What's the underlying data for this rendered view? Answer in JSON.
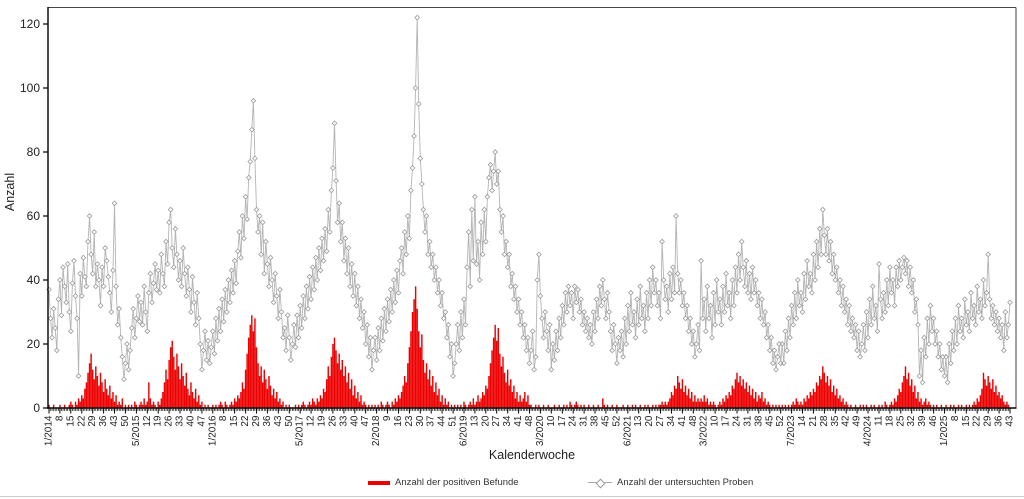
{
  "chart_data": {
    "type": "bar+line",
    "title": "",
    "xlabel": "Kalenderwoche",
    "ylabel": "Anzahl",
    "ylim": [
      0,
      120
    ],
    "yticks": [
      0,
      20,
      40,
      60,
      80,
      100,
      120
    ],
    "x_start": "1/2014",
    "x_end": "43/2025",
    "n_weeks": 617,
    "x_tick_every_weeks": 7,
    "grid": "off",
    "legend_position": "bottom",
    "x_tick_labels": [
      "1/2014",
      "8",
      "15",
      "22",
      "29",
      "36",
      "43",
      "50",
      "5/2015",
      "12",
      "19",
      "26",
      "33",
      "40",
      "47",
      "1/2016",
      "8",
      "15",
      "22",
      "29",
      "36",
      "43",
      "50",
      "5/2017",
      "12",
      "19",
      "26",
      "33",
      "40",
      "47",
      "2/2018",
      "9",
      "16",
      "23",
      "30",
      "37",
      "44",
      "51",
      "6/2019",
      "13",
      "20",
      "27",
      "34",
      "41",
      "48",
      "3/2020",
      "10",
      "17",
      "24",
      "31",
      "38",
      "45",
      "52",
      "6/2021",
      "13",
      "20",
      "27",
      "34",
      "41",
      "48",
      "3/2022",
      "10",
      "17",
      "24",
      "31",
      "38",
      "45",
      "52",
      "7/2023",
      "14",
      "21",
      "28",
      "35",
      "42",
      "49",
      "4/2024",
      "11",
      "18",
      "25",
      "32",
      "39",
      "46",
      "1/2025",
      "8",
      "15",
      "22",
      "29",
      "36",
      "43"
    ],
    "series": [
      {
        "name": "Anzahl der positiven Befunde",
        "type": "bar",
        "color": "#ee0000",
        "values": [
          1,
          0,
          0,
          1,
          0,
          0,
          0,
          1,
          0,
          0,
          1,
          0,
          0,
          1,
          2,
          1,
          0,
          2,
          1,
          3,
          2,
          4,
          3,
          6,
          8,
          11,
          14,
          17,
          12,
          9,
          13,
          10,
          7,
          11,
          8,
          5,
          9,
          6,
          4,
          7,
          3,
          5,
          2,
          4,
          1,
          2,
          1,
          3,
          0,
          1,
          0,
          1,
          0,
          1,
          0,
          2,
          1,
          0,
          1,
          2,
          1,
          3,
          1,
          2,
          8,
          3,
          1,
          2,
          1,
          0,
          2,
          1,
          3,
          5,
          8,
          12,
          9,
          15,
          19,
          21,
          16,
          12,
          17,
          13,
          9,
          14,
          10,
          7,
          11,
          6,
          4,
          8,
          5,
          3,
          6,
          2,
          4,
          1,
          2,
          0,
          1,
          0,
          1,
          0,
          0,
          1,
          0,
          1,
          0,
          1,
          2,
          1,
          0,
          2,
          1,
          0,
          1,
          2,
          1,
          3,
          2,
          4,
          3,
          5,
          8,
          6,
          12,
          17,
          22,
          26,
          29,
          24,
          28,
          19,
          14,
          10,
          13,
          8,
          12,
          9,
          6,
          10,
          7,
          4,
          6,
          3,
          5,
          2,
          3,
          1,
          2,
          0,
          1,
          0,
          1,
          0,
          0,
          0,
          1,
          0,
          1,
          0,
          1,
          2,
          1,
          0,
          1,
          2,
          1,
          3,
          2,
          1,
          3,
          2,
          4,
          3,
          6,
          5,
          9,
          13,
          10,
          16,
          20,
          22,
          18,
          14,
          17,
          12,
          15,
          10,
          13,
          8,
          11,
          6,
          9,
          4,
          7,
          3,
          5,
          2,
          4,
          1,
          2,
          1,
          0,
          1,
          0,
          1,
          0,
          1,
          0,
          1,
          0,
          2,
          1,
          0,
          1,
          2,
          1,
          0,
          2,
          1,
          3,
          2,
          4,
          3,
          5,
          7,
          10,
          8,
          14,
          19,
          24,
          30,
          34,
          38,
          31,
          24,
          19,
          23,
          15,
          11,
          14,
          9,
          12,
          7,
          10,
          5,
          8,
          4,
          6,
          2,
          4,
          1,
          3,
          1,
          2,
          0,
          1,
          0,
          1,
          0,
          1,
          0,
          1,
          0,
          2,
          1,
          0,
          1,
          2,
          1,
          3,
          1,
          2,
          4,
          2,
          3,
          5,
          4,
          7,
          6,
          10,
          14,
          18,
          22,
          26,
          21,
          25,
          17,
          13,
          16,
          11,
          8,
          12,
          7,
          9,
          5,
          7,
          3,
          5,
          2,
          4,
          2,
          3,
          5,
          2,
          4,
          1,
          1,
          0,
          0,
          1,
          0,
          1,
          0,
          0,
          1,
          0,
          0,
          1,
          0,
          0,
          0,
          1,
          0,
          0,
          1,
          0,
          0,
          1,
          0,
          1,
          0,
          2,
          1,
          0,
          1,
          2,
          1,
          0,
          1,
          0,
          1,
          0,
          0,
          1,
          0,
          0,
          1,
          0,
          0,
          1,
          0,
          0,
          3,
          1,
          0,
          1,
          0,
          0,
          1,
          0,
          0,
          1,
          0,
          0,
          0,
          1,
          0,
          0,
          1,
          0,
          0,
          1,
          0,
          1,
          0,
          0,
          1,
          0,
          0,
          1,
          0,
          1,
          0,
          0,
          1,
          0,
          1,
          0,
          1,
          1,
          2,
          1,
          2,
          1,
          2,
          3,
          5,
          4,
          7,
          6,
          10,
          8,
          6,
          9,
          5,
          7,
          4,
          6,
          3,
          5,
          2,
          4,
          2,
          3,
          2,
          3,
          2,
          4,
          2,
          3,
          1,
          2,
          1,
          2,
          1,
          0,
          1,
          2,
          1,
          3,
          2,
          4,
          3,
          5,
          4,
          7,
          6,
          9,
          11,
          8,
          10,
          7,
          9,
          6,
          8,
          5,
          7,
          4,
          6,
          3,
          5,
          2,
          4,
          3,
          5,
          2,
          3,
          1,
          2,
          1,
          0,
          1,
          0,
          1,
          0,
          1,
          0,
          1,
          0,
          1,
          0,
          1,
          0,
          1,
          2,
          1,
          3,
          2,
          1,
          2,
          1,
          3,
          2,
          4,
          3,
          5,
          4,
          6,
          5,
          8,
          7,
          10,
          9,
          13,
          11,
          8,
          10,
          7,
          9,
          5,
          7,
          4,
          6,
          3,
          4,
          2,
          3,
          1,
          2,
          1,
          0,
          1,
          0,
          0,
          1,
          0,
          0,
          1,
          0,
          1,
          0,
          1,
          0,
          0,
          1,
          0,
          1,
          0,
          0,
          1,
          0,
          1,
          0,
          2,
          1,
          0,
          1,
          2,
          1,
          3,
          2,
          4,
          6,
          5,
          8,
          10,
          13,
          9,
          11,
          7,
          9,
          5,
          7,
          3,
          5,
          2,
          3,
          1,
          2,
          3,
          1,
          2,
          1,
          0,
          1,
          0,
          1,
          0,
          0,
          1,
          0,
          0,
          1,
          0,
          0,
          1,
          0,
          1,
          0,
          0,
          1,
          0,
          1,
          0,
          0,
          1,
          0,
          1,
          0,
          1,
          2,
          1,
          3,
          2,
          4,
          6,
          11,
          9,
          7,
          10,
          8,
          6,
          9,
          5,
          7,
          4,
          5,
          3,
          4,
          2,
          1,
          2,
          1,
          0
        ]
      },
      {
        "name": "Anzahl der untersuchten Proben",
        "type": "line",
        "marker": "diamond",
        "color": "#b4b4b4",
        "marker_stroke": "#9b9b9b",
        "values": [
          37,
          28,
          22,
          31,
          25,
          18,
          34,
          40,
          29,
          44,
          38,
          33,
          45,
          30,
          24,
          39,
          46,
          35,
          28,
          10,
          42,
          35,
          47,
          41,
          38,
          52,
          60,
          48,
          42,
          55,
          38,
          45,
          40,
          32,
          44,
          38,
          50,
          46,
          41,
          36,
          30,
          43,
          64,
          38,
          26,
          31,
          22,
          16,
          9,
          14,
          20,
          12,
          18,
          25,
          31,
          22,
          28,
          35,
          27,
          33,
          26,
          38,
          30,
          24,
          36,
          42,
          33,
          39,
          45,
          37,
          43,
          36,
          48,
          42,
          38,
          52,
          45,
          58,
          62,
          50,
          44,
          56,
          48,
          40,
          46,
          38,
          50,
          42,
          35,
          44,
          37,
          30,
          41,
          33,
          26,
          36,
          28,
          20,
          12,
          18,
          24,
          15,
          21,
          14,
          19,
          24,
          17,
          28,
          21,
          31,
          24,
          34,
          27,
          37,
          30,
          40,
          33,
          43,
          36,
          46,
          39,
          49,
          55,
          47,
          60,
          53,
          66,
          59,
          72,
          77,
          87,
          96,
          78,
          62,
          55,
          60,
          48,
          58,
          42,
          52,
          45,
          38,
          47,
          40,
          33,
          42,
          35,
          28,
          37,
          30,
          22,
          25,
          18,
          29,
          22,
          15,
          20,
          26,
          19,
          29,
          22,
          32,
          25,
          35,
          28,
          38,
          31,
          41,
          34,
          44,
          37,
          47,
          40,
          50,
          43,
          53,
          46,
          56,
          49,
          62,
          55,
          68,
          75,
          89,
          71,
          58,
          64,
          52,
          58,
          46,
          53,
          42,
          50,
          38,
          45,
          35,
          42,
          32,
          38,
          28,
          34,
          25,
          30,
          20,
          26,
          16,
          22,
          12,
          18,
          22,
          15,
          25,
          18,
          28,
          21,
          31,
          24,
          34,
          27,
          37,
          30,
          40,
          33,
          43,
          36,
          46,
          50,
          42,
          55,
          48,
          60,
          53,
          68,
          75,
          85,
          100,
          122,
          95,
          78,
          70,
          62,
          55,
          60,
          48,
          52,
          44,
          48,
          40,
          44,
          36,
          40,
          32,
          36,
          28,
          30,
          22,
          26,
          16,
          20,
          10,
          14,
          20,
          26,
          18,
          30,
          22,
          34,
          26,
          44,
          55,
          38,
          62,
          46,
          66,
          45,
          52,
          40,
          58,
          48,
          62,
          52,
          66,
          72,
          76,
          68,
          74,
          80,
          70,
          74,
          62,
          55,
          60,
          48,
          52,
          44,
          48,
          38,
          42,
          34,
          38,
          30,
          34,
          26,
          30,
          22,
          26,
          18,
          22,
          14,
          18,
          24,
          12,
          16,
          40,
          48,
          35,
          28,
          22,
          30,
          24,
          18,
          26,
          12,
          20,
          15,
          24,
          18,
          28,
          22,
          32,
          26,
          36,
          30,
          38,
          32,
          36,
          28,
          38,
          33,
          37,
          30,
          34,
          26,
          30,
          24,
          28,
          22,
          26,
          20,
          30,
          24,
          34,
          28,
          38,
          32,
          40,
          34,
          28,
          36,
          30,
          24,
          18,
          26,
          20,
          14,
          22,
          18,
          24,
          16,
          28,
          20,
          32,
          24,
          36,
          26,
          30,
          22,
          34,
          26,
          38,
          28,
          32,
          24,
          36,
          28,
          40,
          32,
          44,
          36,
          40,
          32,
          36,
          28,
          52,
          40,
          34,
          38,
          30,
          42,
          34,
          44,
          36,
          60,
          42,
          36,
          40,
          32,
          36,
          28,
          32,
          24,
          28,
          20,
          24,
          16,
          20,
          26,
          18,
          46,
          28,
          34,
          24,
          38,
          28,
          32,
          22,
          36,
          26,
          40,
          30,
          34,
          26,
          38,
          30,
          42,
          32,
          36,
          28,
          40,
          32,
          44,
          36,
          48,
          40,
          52,
          44,
          38,
          46,
          36,
          42,
          34,
          44,
          36,
          40,
          32,
          36,
          28,
          34,
          26,
          30,
          22,
          26,
          18,
          22,
          14,
          18,
          12,
          16,
          20,
          14,
          20,
          14,
          24,
          18,
          28,
          22,
          32,
          26,
          36,
          28,
          40,
          32,
          36,
          30,
          42,
          34,
          46,
          38,
          42,
          36,
          48,
          40,
          52,
          44,
          56,
          48,
          62,
          54,
          48,
          56,
          46,
          52,
          42,
          48,
          40,
          44,
          36,
          40,
          32,
          38,
          30,
          34,
          26,
          32,
          24,
          28,
          22,
          26,
          18,
          24,
          16,
          20,
          26,
          18,
          30,
          22,
          34,
          26,
          38,
          28,
          32,
          24,
          45,
          34,
          28,
          36,
          30,
          40,
          32,
          44,
          36,
          40,
          32,
          44,
          38,
          46,
          40,
          44,
          47,
          42,
          46,
          38,
          44,
          36,
          40,
          30,
          34,
          26,
          10,
          18,
          8,
          22,
          16,
          28,
          20,
          32,
          24,
          28,
          20,
          24,
          16,
          20,
          12,
          16,
          10,
          16,
          8,
          20,
          14,
          24,
          18,
          28,
          20,
          32,
          24,
          28,
          22,
          34,
          26,
          30,
          24,
          36,
          28,
          32,
          26,
          38,
          30,
          34,
          28,
          40,
          32,
          36,
          48,
          34,
          28,
          32,
          26,
          30,
          24,
          28,
          22,
          26,
          18,
          30,
          22,
          26,
          33
        ]
      }
    ],
    "colors": {
      "axis": "#000000",
      "frame": "#444444",
      "text": "#222222",
      "marker_fill": "#ffffff"
    }
  }
}
